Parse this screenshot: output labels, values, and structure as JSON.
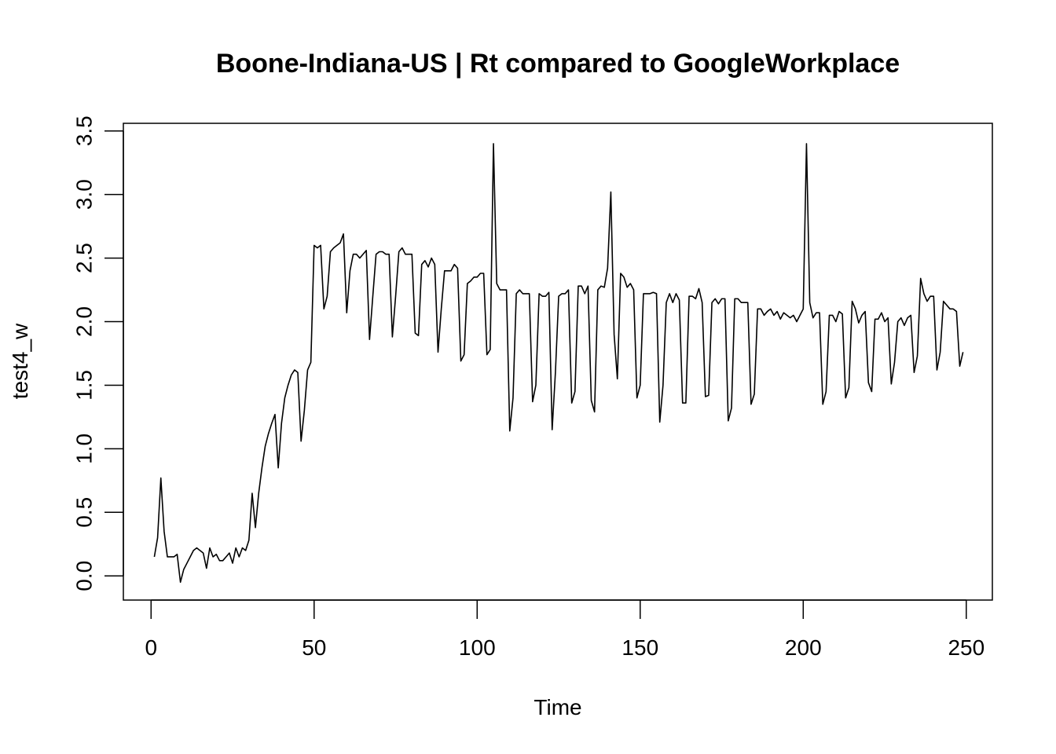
{
  "chart_data": {
    "type": "line",
    "title": "Boone-Indiana-US | Rt compared to GoogleWorkplace",
    "xlabel": "Time",
    "ylabel": "test4_w",
    "xlim": [
      -8.5,
      258
    ],
    "ylim": [
      -0.19,
      3.56
    ],
    "xticks": [
      0,
      50,
      100,
      150,
      200,
      250
    ],
    "yticks": [
      0.0,
      0.5,
      1.0,
      1.5,
      2.0,
      2.5,
      3.0,
      3.5
    ],
    "xtick_labels": [
      "0",
      "50",
      "100",
      "150",
      "200",
      "250"
    ],
    "ytick_labels": [
      "0.0",
      "0.5",
      "1.0",
      "1.5",
      "2.0",
      "2.5",
      "3.0",
      "3.5"
    ],
    "grid": false,
    "legend": "none",
    "line_color": "#000000",
    "series": [
      {
        "x_start": 1,
        "values": [
          0.15,
          0.3,
          0.77,
          0.35,
          0.15,
          0.15,
          0.15,
          0.17,
          -0.05,
          0.05,
          0.1,
          0.15,
          0.2,
          0.22,
          0.2,
          0.18,
          0.06,
          0.22,
          0.15,
          0.17,
          0.12,
          0.12,
          0.15,
          0.18,
          0.1,
          0.22,
          0.15,
          0.22,
          0.2,
          0.28,
          0.65,
          0.38,
          0.65,
          0.85,
          1.02,
          1.12,
          1.2,
          1.27,
          0.85,
          1.2,
          1.4,
          1.5,
          1.58,
          1.62,
          1.6,
          1.06,
          1.3,
          1.62,
          1.68,
          2.6,
          2.58,
          2.6,
          2.1,
          2.2,
          2.55,
          2.58,
          2.6,
          2.62,
          2.69,
          2.07,
          2.4,
          2.53,
          2.53,
          2.5,
          2.53,
          2.56,
          1.86,
          2.2,
          2.53,
          2.55,
          2.55,
          2.53,
          2.53,
          1.88,
          2.2,
          2.55,
          2.58,
          2.53,
          2.53,
          2.53,
          1.91,
          1.89,
          2.45,
          2.48,
          2.43,
          2.5,
          2.45,
          1.76,
          2.1,
          2.4,
          2.4,
          2.4,
          2.45,
          2.42,
          1.69,
          1.74,
          2.3,
          2.32,
          2.35,
          2.35,
          2.38,
          2.38,
          1.74,
          1.78,
          3.4,
          2.3,
          2.25,
          2.25,
          2.25,
          1.14,
          1.4,
          2.22,
          2.25,
          2.22,
          2.22,
          2.22,
          1.37,
          1.5,
          2.22,
          2.2,
          2.2,
          2.23,
          1.15,
          1.6,
          2.2,
          2.22,
          2.22,
          2.25,
          1.36,
          1.45,
          2.28,
          2.28,
          2.22,
          2.28,
          1.38,
          1.29,
          2.25,
          2.28,
          2.27,
          2.42,
          3.02,
          1.9,
          1.55,
          2.38,
          2.35,
          2.27,
          2.3,
          2.25,
          1.4,
          1.5,
          2.22,
          2.22,
          2.22,
          2.23,
          2.22,
          1.21,
          1.5,
          2.15,
          2.22,
          2.15,
          2.22,
          2.17,
          1.36,
          1.36,
          2.2,
          2.2,
          2.18,
          2.26,
          2.15,
          1.41,
          1.42,
          2.15,
          2.18,
          2.14,
          2.18,
          2.18,
          1.22,
          1.32,
          2.18,
          2.18,
          2.15,
          2.15,
          2.15,
          1.35,
          1.43,
          2.1,
          2.1,
          2.05,
          2.08,
          2.1,
          2.05,
          2.08,
          2.02,
          2.07,
          2.05,
          2.03,
          2.05,
          2.0,
          2.05,
          2.1,
          3.4,
          2.15,
          2.03,
          2.07,
          2.07,
          1.35,
          1.45,
          2.05,
          2.05,
          2.0,
          2.08,
          2.06,
          1.4,
          1.48,
          2.16,
          2.1,
          1.99,
          2.05,
          2.08,
          1.52,
          1.45,
          2.02,
          2.02,
          2.07,
          2.0,
          2.03,
          1.51,
          1.68,
          2.0,
          2.03,
          1.97,
          2.03,
          2.05,
          1.6,
          1.73,
          2.34,
          2.22,
          2.16,
          2.2,
          2.2,
          1.62,
          1.76,
          2.16,
          2.13,
          2.1,
          2.1,
          2.08,
          1.65,
          1.76
        ]
      }
    ]
  }
}
